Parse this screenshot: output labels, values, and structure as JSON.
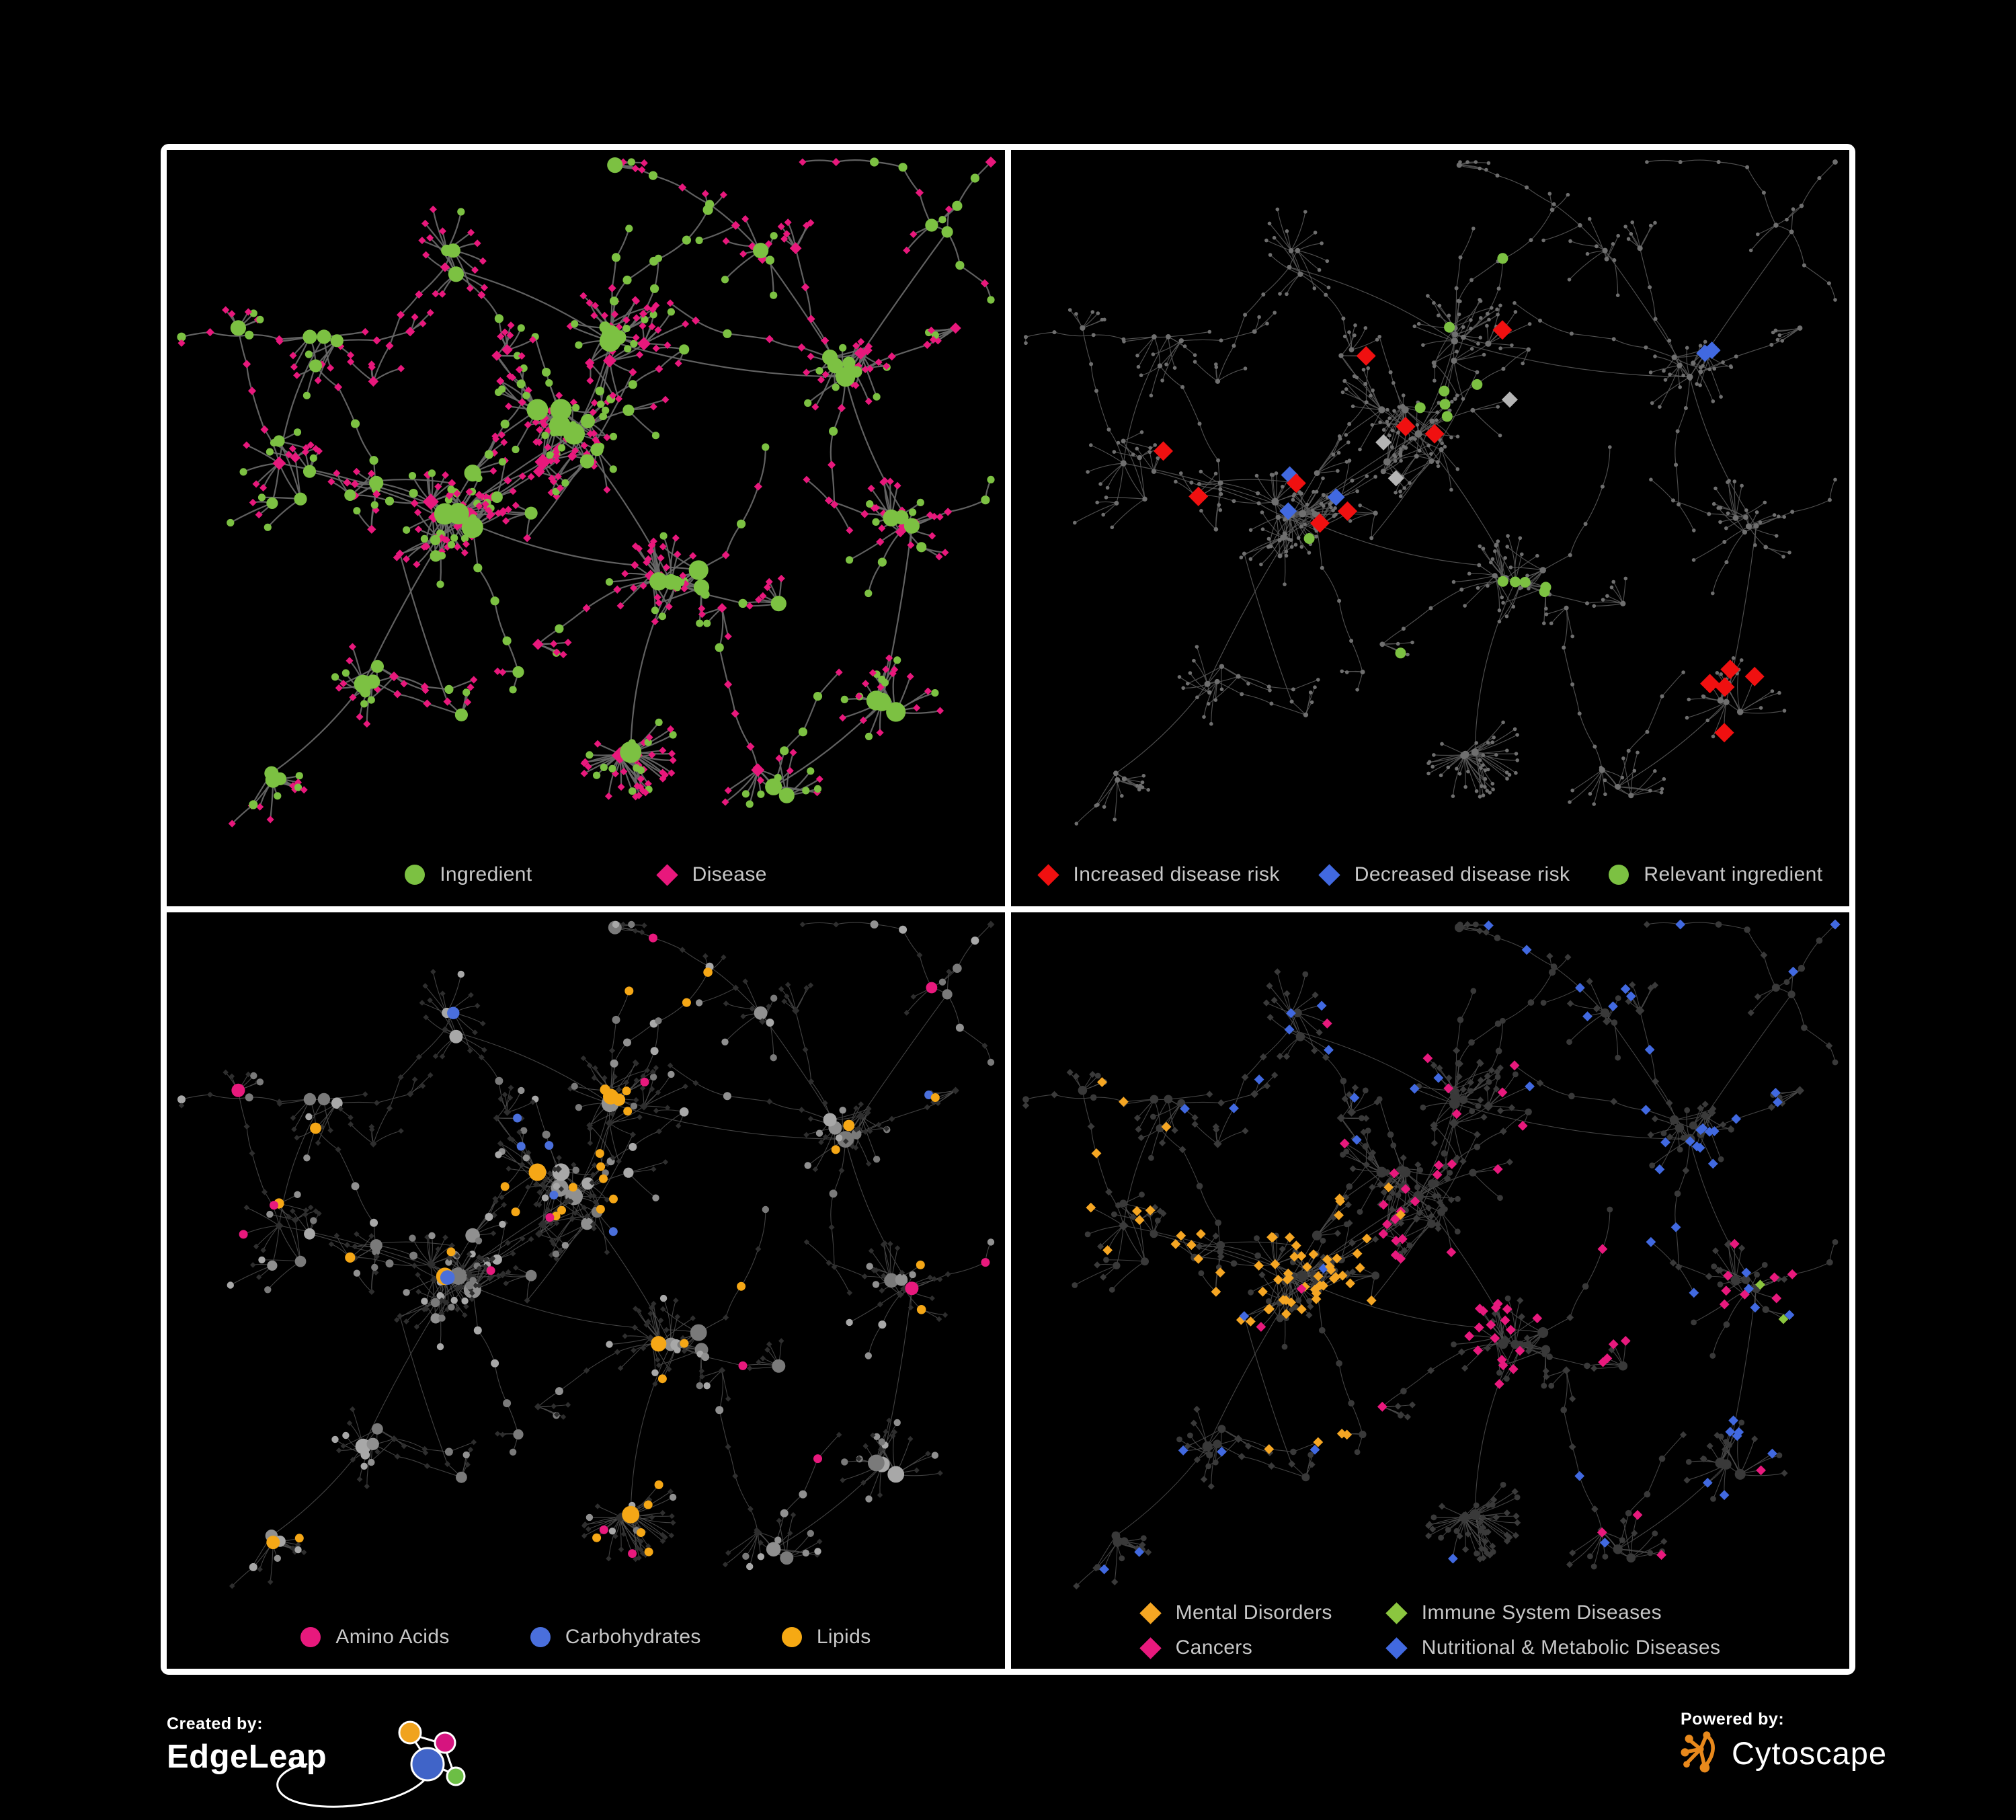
{
  "background": "#000000",
  "panel_border_color": "#ffffff",
  "panels": [
    {
      "id": "ingredient-disease",
      "legend": [
        {
          "label": "Ingredient",
          "shape": "circle",
          "color": "#7cc142"
        },
        {
          "label": "Disease",
          "shape": "diamond",
          "color": "#e8187c"
        }
      ]
    },
    {
      "id": "disease-risk",
      "legend": [
        {
          "label": "Increased disease risk",
          "shape": "diamond",
          "color": "#f01010"
        },
        {
          "label": "Decreased disease risk",
          "shape": "diamond",
          "color": "#4169e0"
        },
        {
          "label": "Relevant ingredient",
          "shape": "circle",
          "color": "#7cc142"
        }
      ]
    },
    {
      "id": "compound-classes",
      "legend": [
        {
          "label": "Amino Acids",
          "shape": "circle",
          "color": "#e8197d"
        },
        {
          "label": "Carbohydrates",
          "shape": "circle",
          "color": "#4a6fdc"
        },
        {
          "label": "Lipids",
          "shape": "circle",
          "color": "#f6a913"
        }
      ]
    },
    {
      "id": "disease-classes",
      "legend": [
        {
          "label": "Mental Disorders",
          "shape": "diamond",
          "color": "#f5a623"
        },
        {
          "label": "Immune System Diseases",
          "shape": "diamond",
          "color": "#8bc63f"
        },
        {
          "label": "Cancers",
          "shape": "diamond",
          "color": "#e8197d"
        },
        {
          "label": "Nutritional & Metabolic Diseases",
          "shape": "diamond",
          "color": "#4169e0"
        }
      ]
    }
  ],
  "network_style": {
    "panel1_edge": "#696969",
    "panel2_edge": "#585858",
    "panel3_edge": "#4d4d4d",
    "panel4_edge": "#4f4f4f",
    "panel2_default_node": "#6f6f6f",
    "panel2_neutral_diamond": "#b5b5b5",
    "panel3_gray_circle": "#9a9a9a",
    "panel3_dim_diamond": "#2e2e2e",
    "panel4_dim_node": "#3a3a3a",
    "ingredient_green": "#7cc142",
    "disease_pink": "#e8187c",
    "risk_red": "#f01010",
    "risk_blue": "#4169e0",
    "lipid_orange": "#f6a913",
    "carb_blue": "#4a6fdc",
    "amino_pink": "#e8197d"
  },
  "footer": {
    "created_by_label": "Created by:",
    "created_by_name": "EdgeLeap",
    "powered_by_label": "Powered by:",
    "powered_by_name": "Cytoscape"
  }
}
